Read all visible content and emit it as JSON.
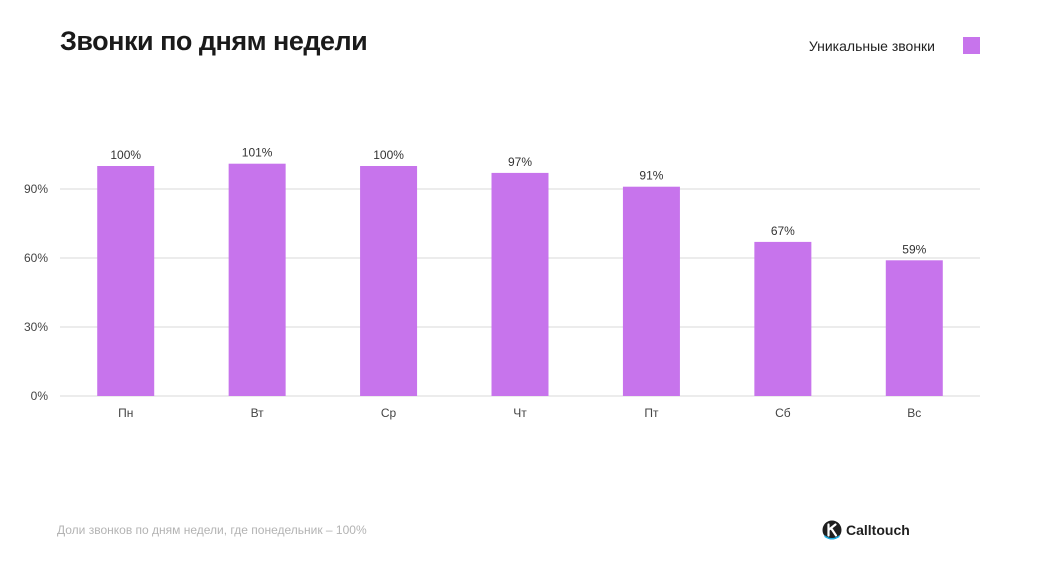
{
  "header": {
    "title": "Звонки по дням недели"
  },
  "legend": {
    "label": "Уникальные звонки",
    "color": "#c774ec"
  },
  "footer": {
    "note": "Доли звонков по дням недели, где понедельник – 100%",
    "brand": "Calltouch"
  },
  "colors": {
    "bar": "#c774ec",
    "grid": "#d9d9d9",
    "axis_text": "#444444",
    "label_text": "#333333",
    "logo_dark": "#1f1f1f",
    "logo_accent": "#19aee6"
  },
  "icons": {
    "logo": "calltouch-logo-icon"
  },
  "chart_data": {
    "type": "bar",
    "categories": [
      "Пн",
      "Вт",
      "Ср",
      "Чт",
      "Пт",
      "Сб",
      "Вс"
    ],
    "series": [
      {
        "name": "Уникальные звонки",
        "values": [
          100,
          101,
          100,
          97,
          91,
          67,
          59
        ],
        "labels": [
          "100%",
          "101%",
          "100%",
          "97%",
          "91%",
          "67%",
          "59%"
        ]
      }
    ],
    "y_ticks": [
      0,
      30,
      60,
      90
    ],
    "y_tick_labels": [
      "0%",
      "30%",
      "60%",
      "90%"
    ],
    "ylim": [
      0,
      101
    ],
    "grid": true,
    "legend_position": "top-right",
    "title": "Звонки по дням недели",
    "xlabel": "",
    "ylabel": ""
  }
}
